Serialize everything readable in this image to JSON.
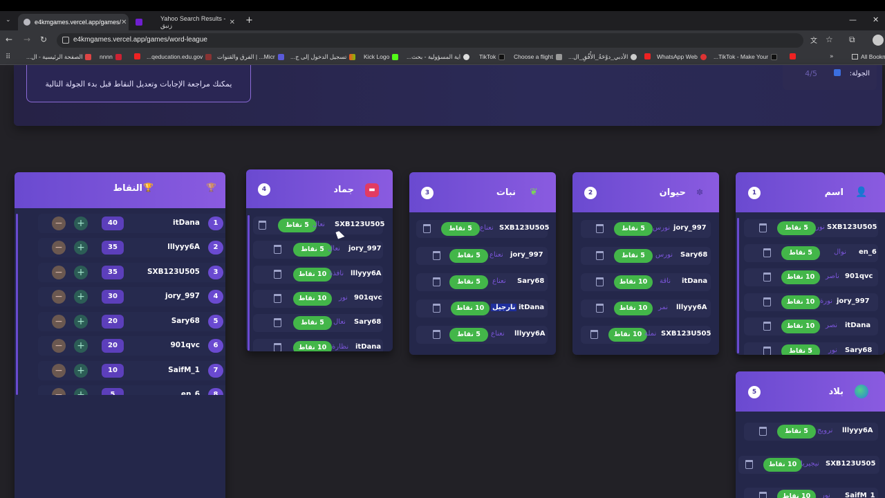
{
  "browser": {
    "tabs": [
      {
        "title": "e4kmgames.vercel.app/games/"
      },
      {
        "title": "Yahoo Search Results - زنبق"
      }
    ],
    "new_tab": "+",
    "url": "e4kmgames.vercel.app/games/word-league",
    "bookmarks": [
      "الصفحة الرئيسية - ال...",
      "nnnn",
      "qeducation.edu.gov...",
      "Micr... | الفرق والقنوات",
      "تسجيل الدخول إلى ج...",
      "Kick Logo",
      "اية المسؤولية - بحث...",
      "TikTok",
      "Choose a flight",
      "الأدبي_دوْحَةُ_الأُفُقِ_ال...",
      "WhatsApp Web",
      "TikTok - Make Your...",
      "All Bookmarks"
    ]
  },
  "hero": {
    "hint": "يمكنك مراجعة الإجابات وتعديل النقاط قبل بدء الجولة التالية",
    "round_label": "الجولة:",
    "round_value": "4/5"
  },
  "scoreboard": {
    "title": "النقاط",
    "rows": [
      {
        "rank": "1",
        "name": "itDana",
        "points": "40"
      },
      {
        "rank": "2",
        "name": "lllyyy6A",
        "points": "35"
      },
      {
        "rank": "3",
        "name": "SXB123U505",
        "points": "35"
      },
      {
        "rank": "4",
        "name": "jory_997",
        "points": "30"
      },
      {
        "rank": "5",
        "name": "Sary68",
        "points": "20"
      },
      {
        "rank": "6",
        "name": "901qvc",
        "points": "20"
      },
      {
        "rank": "7",
        "name": "SaifM_1",
        "points": "10"
      },
      {
        "rank": "8",
        "name": "en_6",
        "points": "5"
      }
    ]
  },
  "categories": [
    {
      "key": "jamad",
      "number": "4",
      "title": "جماد",
      "answers": [
        {
          "player": "SXB123U505",
          "word": "نعال",
          "points": "5 نقاط"
        },
        {
          "player": "jory_997",
          "word": "نعال",
          "points": "5 نقاط"
        },
        {
          "player": "lllyyy6A",
          "word": "نافذة",
          "points": "10 نقاط"
        },
        {
          "player": "901qvc",
          "word": "نور",
          "points": "10 نقاط"
        },
        {
          "player": "Sary68",
          "word": "نعال",
          "points": "5 نقاط"
        },
        {
          "player": "itDana",
          "word": "نظارة",
          "points": "10 نقاط"
        }
      ]
    },
    {
      "key": "nabat",
      "number": "3",
      "title": "نبات",
      "answers": [
        {
          "player": "SXB123U505",
          "word": "نعناع",
          "points": "5 نقاط"
        },
        {
          "player": "jory_997",
          "word": "نعناع",
          "points": "5 نقاط"
        },
        {
          "player": "Sary68",
          "word": "نعناع",
          "points": "5 نقاط"
        },
        {
          "player": "itDana",
          "word": "نارجيل",
          "points": "10 نقاط"
        },
        {
          "player": "lllyyy6A",
          "word": "نعناع",
          "points": "5 نقاط"
        }
      ]
    },
    {
      "key": "hayawan",
      "number": "2",
      "title": "حيوان",
      "answers": [
        {
          "player": "jory_997",
          "word": "نورس",
          "points": "5 نقاط"
        },
        {
          "player": "Sary68",
          "word": "نورس",
          "points": "5 نقاط"
        },
        {
          "player": "itDana",
          "word": "ناقة",
          "points": "10 نقاط"
        },
        {
          "player": "lllyyy6A",
          "word": "نمر",
          "points": "10 نقاط"
        },
        {
          "player": "SXB123U505",
          "word": "نملة",
          "points": "10 نقاط"
        }
      ]
    },
    {
      "key": "ism",
      "number": "1",
      "title": "اسم",
      "answers": [
        {
          "player": "SXB123U505",
          "word": "نور",
          "points": "5 نقاط"
        },
        {
          "player": "en_6",
          "word": "نوال",
          "points": "5 نقاط"
        },
        {
          "player": "901qvc",
          "word": "ناصر",
          "points": "10 نقاط"
        },
        {
          "player": "jory_997",
          "word": "نورة",
          "points": "10 نقاط"
        },
        {
          "player": "itDana",
          "word": "نصر",
          "points": "10 نقاط"
        },
        {
          "player": "Sary68",
          "word": "نور",
          "points": "5 نقاط"
        }
      ]
    },
    {
      "key": "balad",
      "number": "5",
      "title": "بلاد",
      "answers": [
        {
          "player": "lllyyy6A",
          "word": "نرويج",
          "points": "5 نقاط"
        },
        {
          "player": "SXB123U505",
          "word": "نيجيريا",
          "points": "10 نقاط"
        },
        {
          "player": "SaifM_1",
          "word": "نور",
          "points": "10 نقاط"
        }
      ]
    }
  ],
  "colors": {
    "accent": "#7b50dc",
    "pill": "#43b649",
    "card": "#24274a",
    "page": "#222126"
  }
}
